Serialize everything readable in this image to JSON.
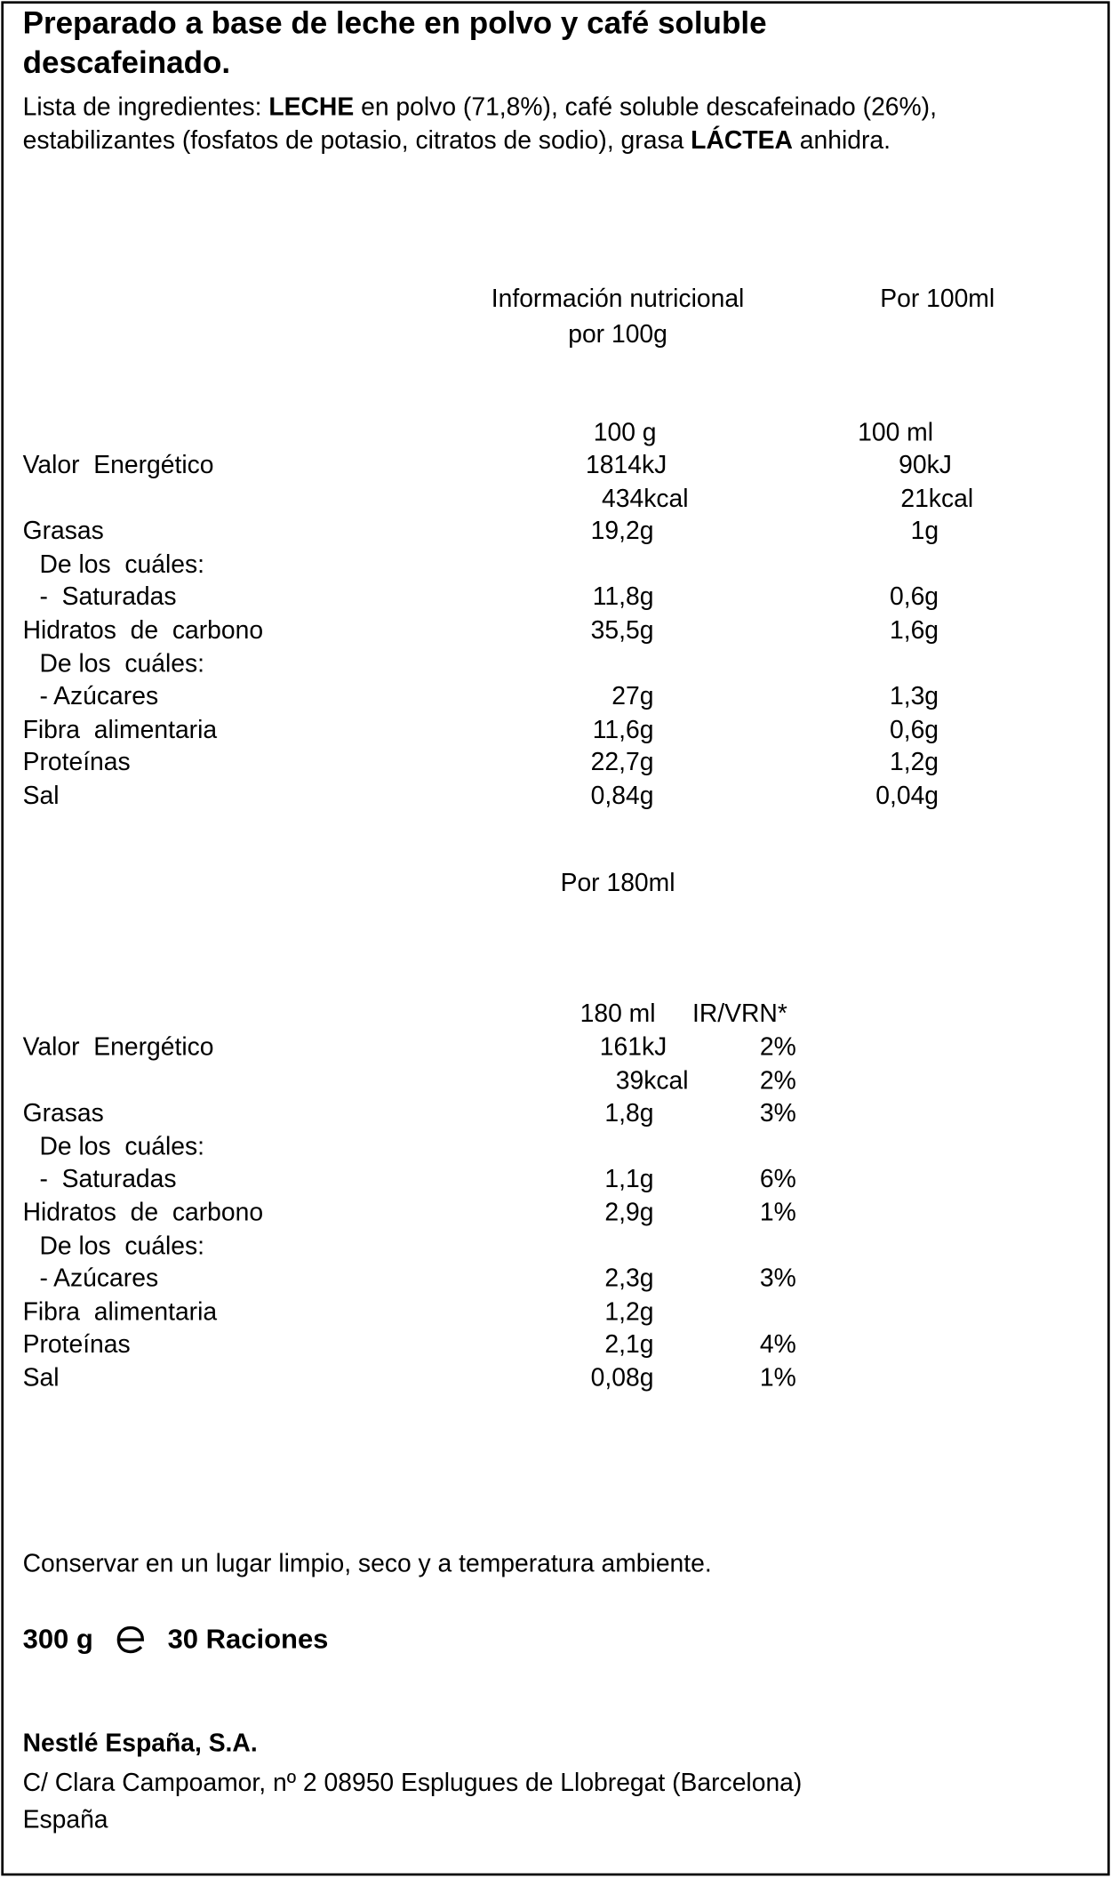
{
  "header": {
    "title": "Preparado a base de leche en polvo y café soluble descafeinado."
  },
  "ingredients": [
    "Lista de ingredientes: ",
    "LECHE",
    " en polvo (71,8%), café soluble descafeinado (26%), estabilizantes (fosfatos de potasio, citratos de sodio), grasa ",
    "LÁCTEA",
    " anhidra."
  ],
  "table1": {
    "heading": "Información nutricional",
    "heading2": "por 100g",
    "heading_right": "Por 100ml",
    "columns": [
      "100 g",
      "100 ml"
    ],
    "rows": [
      [
        "Valor  Energético",
        "1814kJ",
        "90kJ"
      ],
      [
        null,
        "434kcal",
        "21kcal"
      ],
      [
        "Grasas",
        "19,2g",
        "1g"
      ],
      [
        "De los  cuáles:",
        null,
        null
      ],
      [
        "-  Saturadas",
        "11,8g",
        "0,6g"
      ],
      [
        "Hidratos  de  carbono",
        "35,5g",
        "1,6g"
      ],
      [
        "De los  cuáles:",
        null,
        null
      ],
      [
        "- Azúcares",
        "27g",
        "1,3g"
      ],
      [
        "Fibra  alimentaria",
        "11,6g",
        "0,6g"
      ],
      [
        "Proteínas",
        "22,7g",
        "1,2g"
      ],
      [
        "Sal",
        "0,84g",
        "0,04g"
      ]
    ]
  },
  "table2": {
    "heading": "Por 180ml",
    "columns": [
      "180 ml",
      "IR/VRN*"
    ],
    "rows": [
      [
        "Valor  Energético",
        "161kJ",
        "2%"
      ],
      [
        null,
        "39kcal",
        "2%"
      ],
      [
        "Grasas",
        "1,8g",
        "3%"
      ],
      [
        "De los  cuáles:",
        null,
        null
      ],
      [
        "-  Saturadas",
        "1,1g",
        "6%"
      ],
      [
        "Hidratos  de  carbono",
        "2,9g",
        "1%"
      ],
      [
        "De los  cuáles:",
        null,
        null
      ],
      [
        "- Azúcares",
        "2,3g",
        "3%"
      ],
      [
        "Fibra  alimentaria",
        "1,2g",
        null
      ],
      [
        "Proteínas",
        "2,1g",
        "4%"
      ],
      [
        "Sal",
        "0,08g",
        "1%"
      ]
    ]
  },
  "storage": "Conservar en un lugar limpio, seco y a temperatura ambiente.",
  "weight": "300 g",
  "portions": "30 Raciones",
  "company": {
    "name": "Nestlé España, S.A.",
    "address": "C/ Clara Campoamor, nº 2 08950 Esplugues de Llobregat (Barcelona)",
    "country": "España"
  }
}
